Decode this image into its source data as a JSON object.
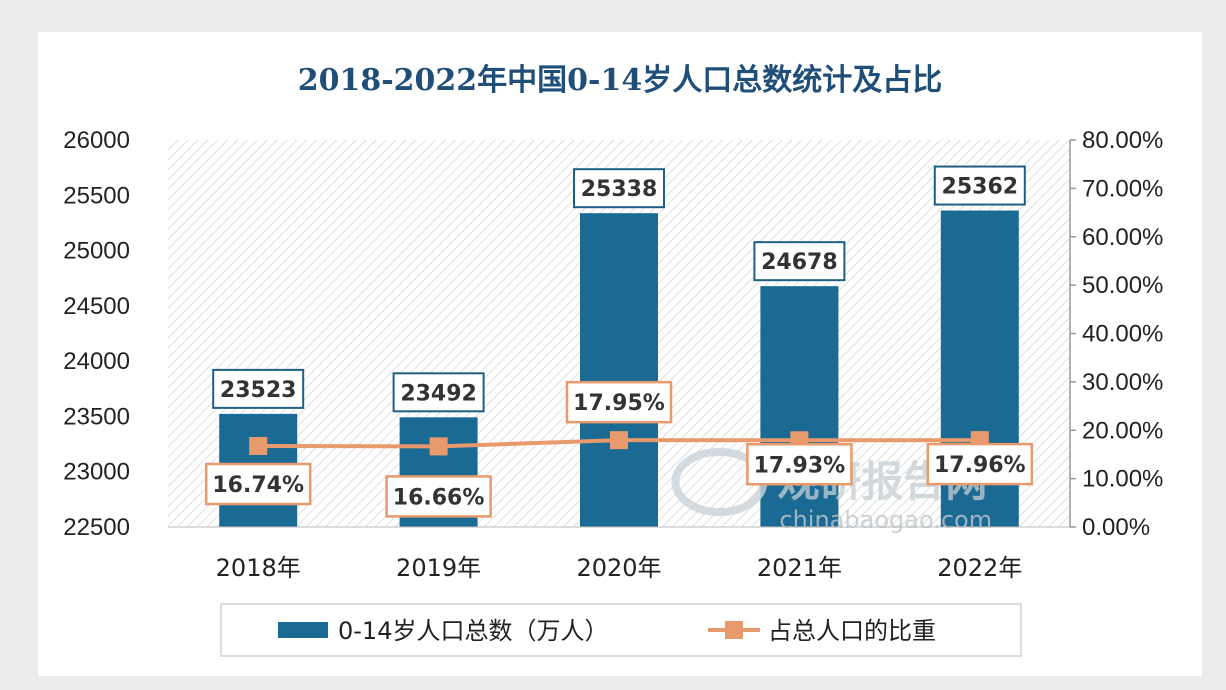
{
  "chart_data": {
    "type": "bar",
    "title": "2018-2022年中国0-14岁人口总数统计及占比",
    "categories": [
      "2018年",
      "2019年",
      "2020年",
      "2021年",
      "2022年"
    ],
    "series": [
      {
        "name": "0-14岁人口总数（万人）",
        "type": "bar",
        "axis": "left",
        "color": "#1b6a93",
        "values": [
          23523,
          23492,
          25338,
          24678,
          25362
        ],
        "labels": [
          "23523",
          "23492",
          "25338",
          "24678",
          "25362"
        ]
      },
      {
        "name": "占总人口的比重",
        "type": "line",
        "axis": "right",
        "color": "#e89a6c",
        "values": [
          16.74,
          16.66,
          17.95,
          17.93,
          17.96
        ],
        "labels": [
          "16.74%",
          "16.66%",
          "17.95%",
          "17.93%",
          "17.96%"
        ]
      }
    ],
    "y_left": {
      "lim": [
        22500,
        26000
      ],
      "ticks": [
        22500,
        23000,
        23500,
        24000,
        24500,
        25000,
        25500,
        26000
      ],
      "tick_labels": [
        "22500",
        "23000",
        "23500",
        "24000",
        "24500",
        "25000",
        "25500",
        "26000"
      ]
    },
    "y_right": {
      "lim": [
        0,
        80
      ],
      "ticks": [
        0,
        10,
        20,
        30,
        40,
        50,
        60,
        70,
        80
      ],
      "tick_labels": [
        "0.00%",
        "10.00%",
        "20.00%",
        "30.00%",
        "40.00%",
        "50.00%",
        "60.00%",
        "70.00%",
        "80.00%"
      ]
    },
    "grid": false,
    "legend_position": "bottom",
    "watermark": {
      "text": "观研报告网",
      "url_text": "chinabaogao.com"
    }
  }
}
